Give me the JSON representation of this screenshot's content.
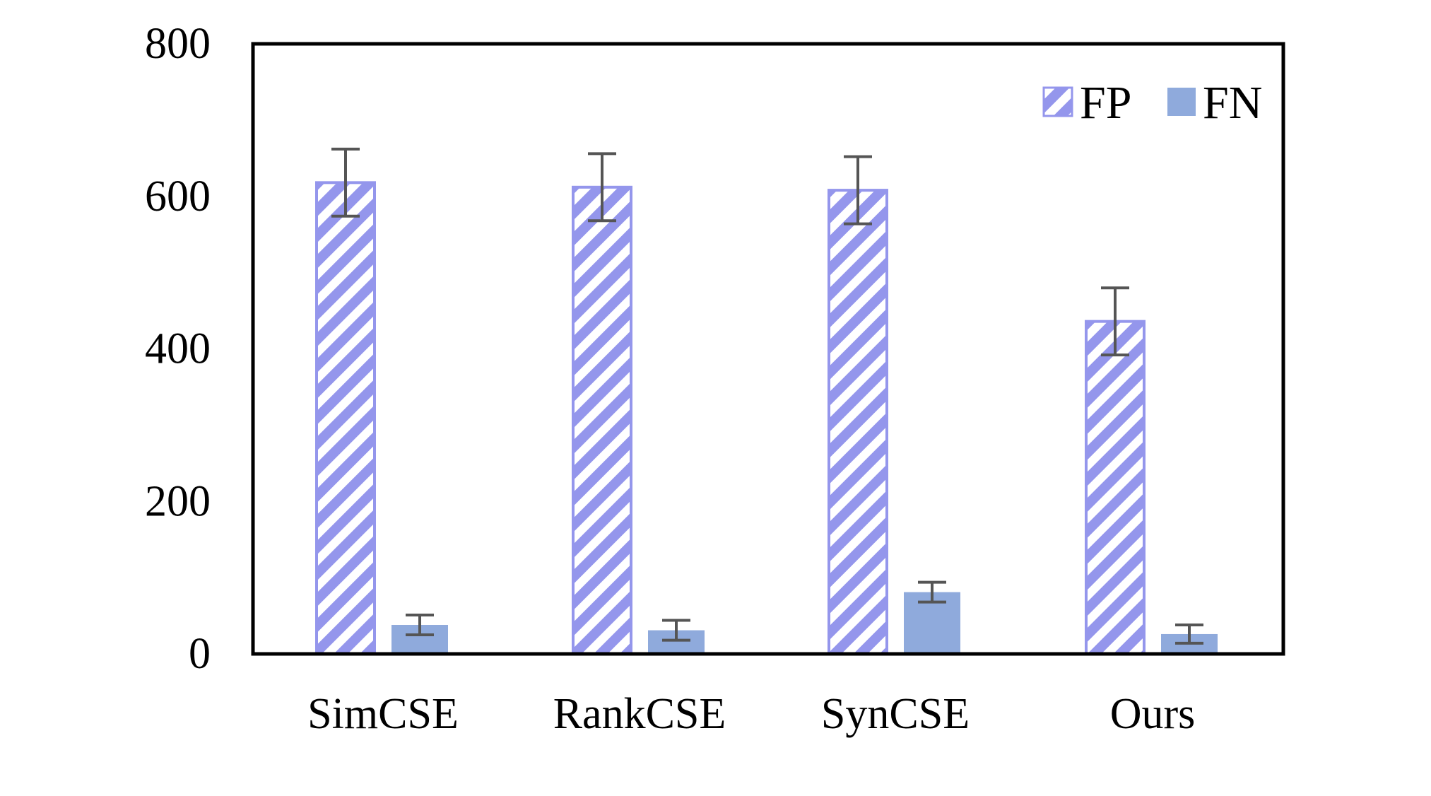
{
  "chart_data": {
    "type": "bar",
    "title": "",
    "xlabel": "",
    "ylabel": "",
    "categories": [
      "SimCSE",
      "RankCSE",
      "SynCSE",
      "Ours"
    ],
    "series": [
      {
        "name": "FP",
        "values": [
          618,
          612,
          608,
          436
        ],
        "errors": [
          44,
          44,
          44,
          44
        ],
        "color": "#9496EC",
        "pattern": "diagonal-hatch"
      },
      {
        "name": "FN",
        "values": [
          38,
          31,
          81,
          26
        ],
        "errors": [
          13,
          13,
          13,
          12
        ],
        "color": "#8FAADC",
        "pattern": "solid"
      }
    ],
    "ylim": [
      0,
      800
    ],
    "yticks": [
      "0",
      "200",
      "400",
      "600",
      "800"
    ],
    "legend_position": "top-right",
    "grid": false,
    "error_bar_color": "#555555"
  }
}
